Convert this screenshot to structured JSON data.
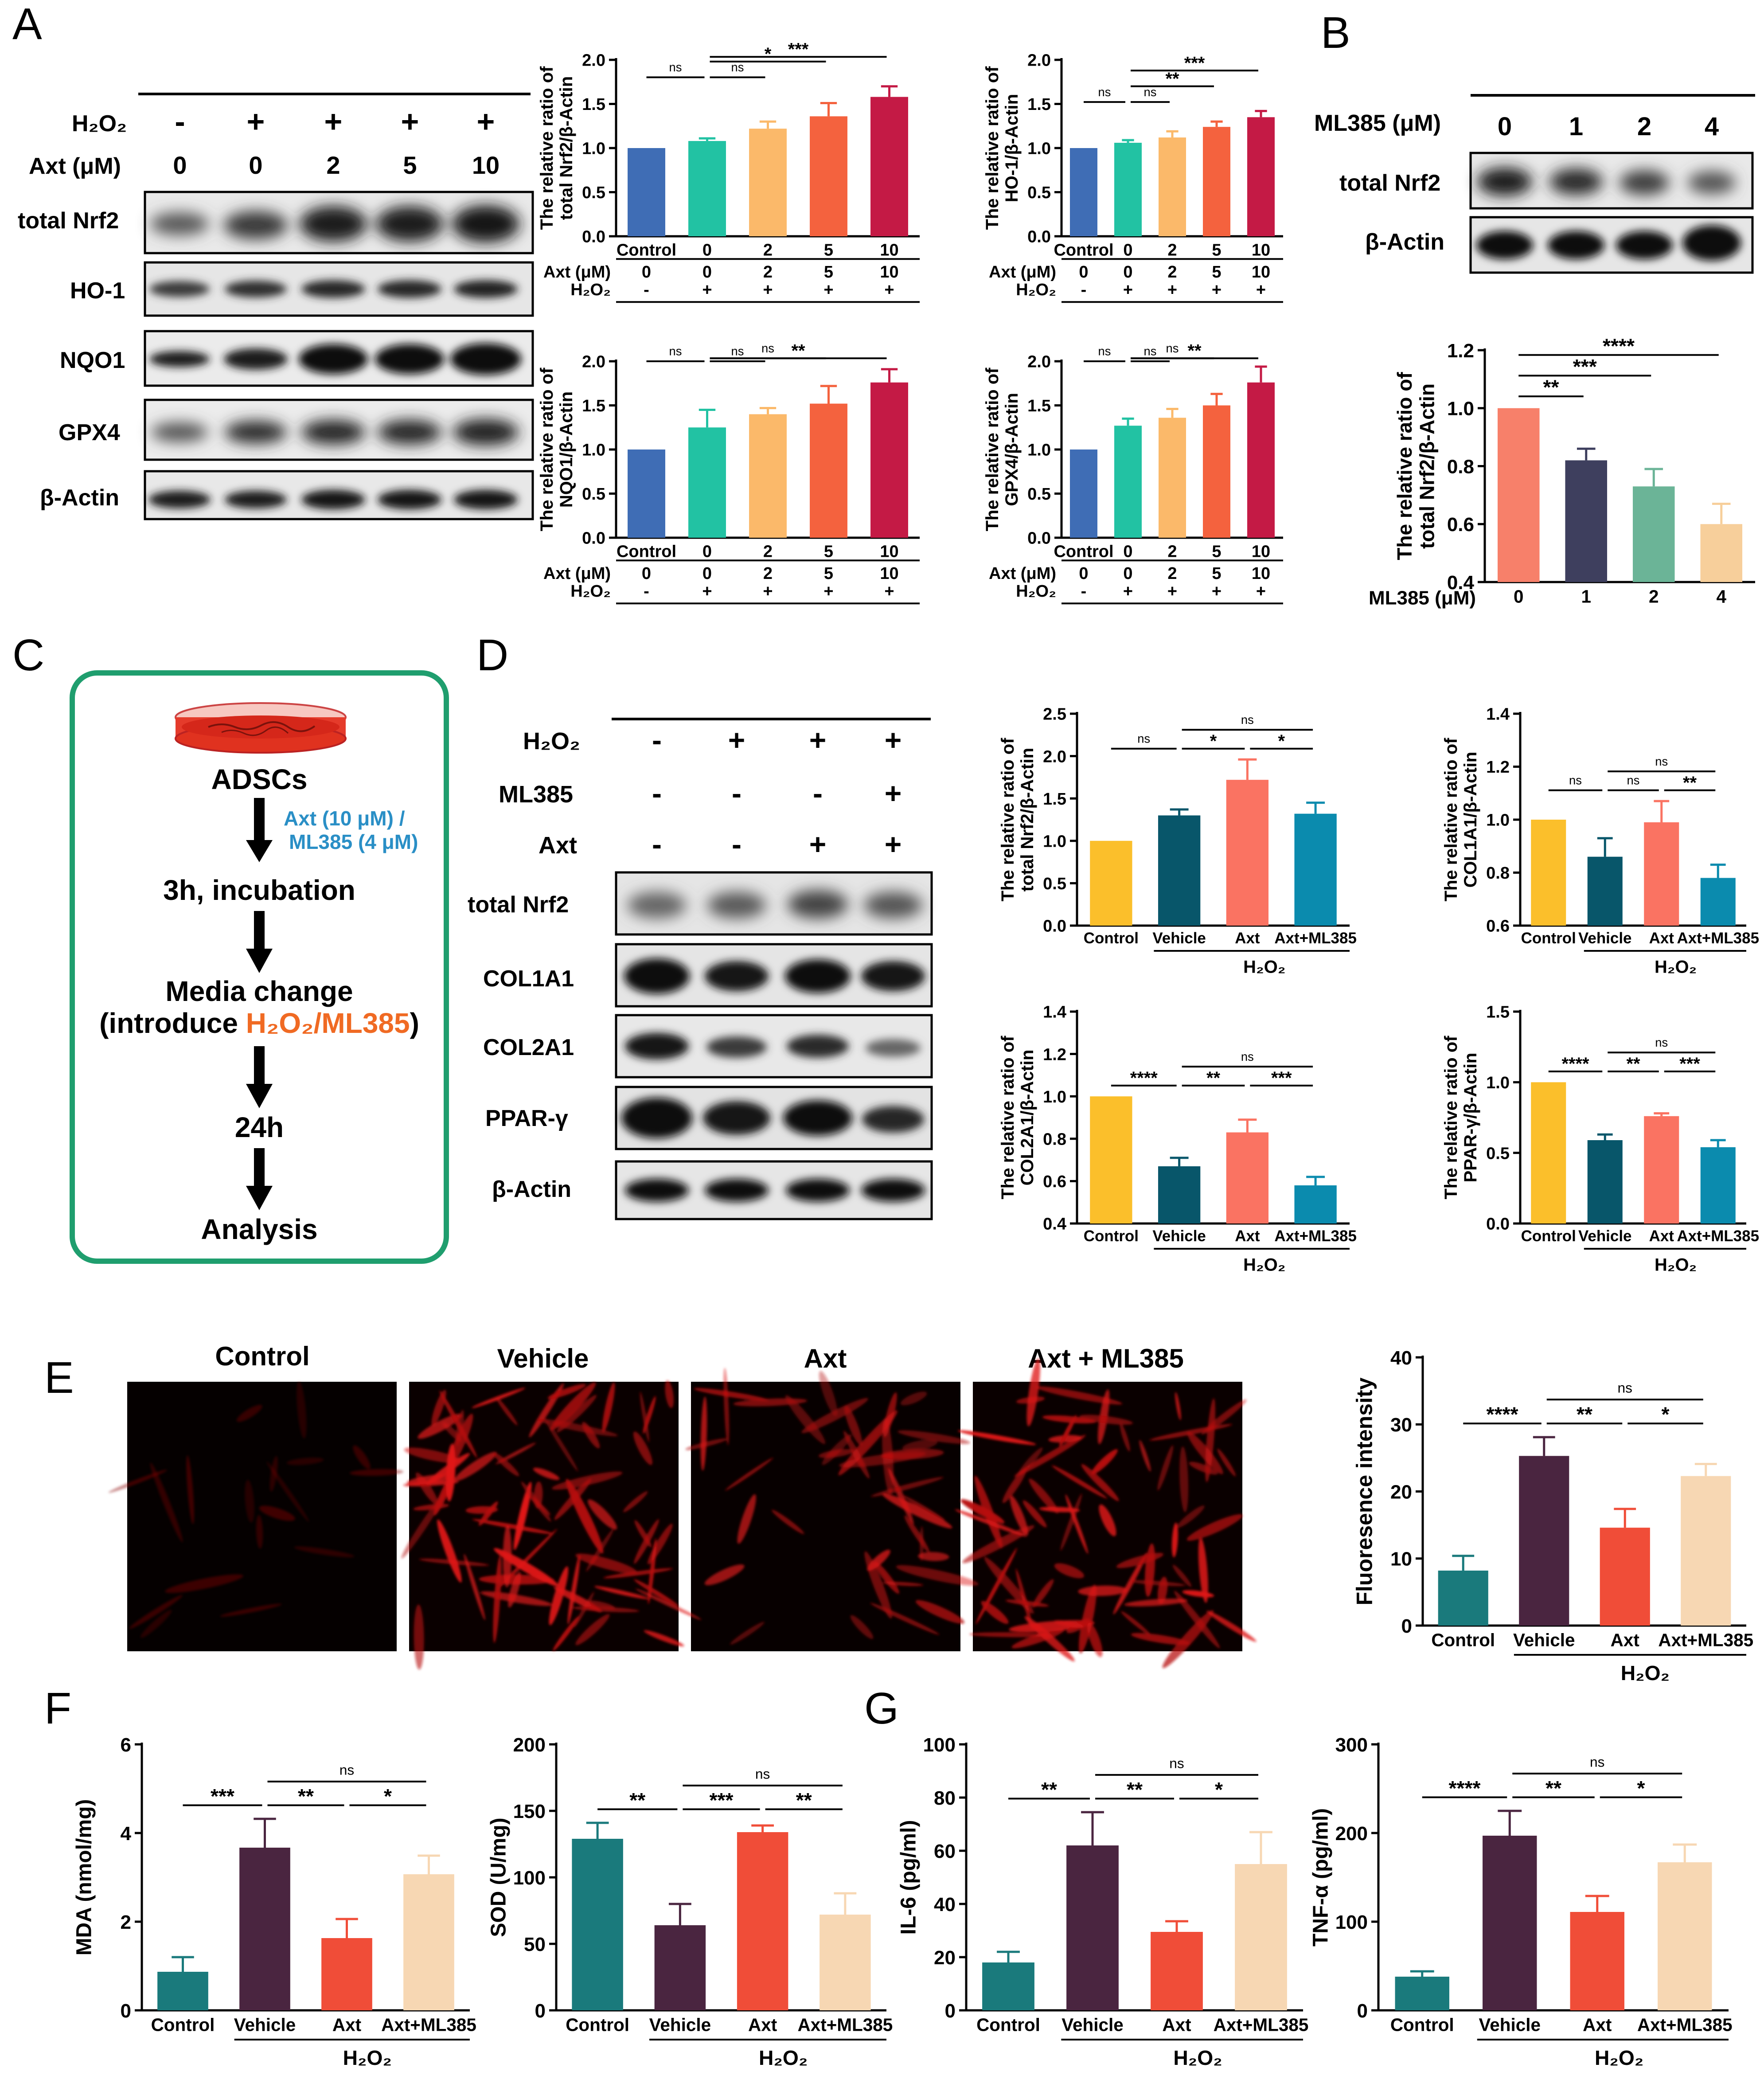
{
  "colors": {
    "control_blue": "#3f6db5",
    "cyan": "#22c2a3",
    "light_orange": "#fbb96a",
    "orange": "#f4623e",
    "crimson": "#c41a45",
    "salmon": "#f7806a",
    "navy": "#3e3f5e",
    "sage": "#6bb497",
    "beige": "#f7cf9b",
    "gold": "#fbbf2b",
    "teal_dark": "#08566a",
    "coral": "#fa7362",
    "teal_blue": "#0b8bae",
    "teal": "#1a7a7c",
    "plum": "#4a2540",
    "red": "#f04d38",
    "peach": "#f7d7b3",
    "flow_green": "#1f9e6e",
    "axt_blue": "#2a8fc6",
    "h2o2_orange": "#f06a23"
  },
  "panel_letters": {
    "A": "A",
    "B": "B",
    "C": "C",
    "D": "D",
    "E": "E",
    "F": "F",
    "G": "G"
  },
  "panelA": {
    "h2o2_label": "H₂O₂",
    "h2o2_signs": [
      "-",
      "+",
      "+",
      "+",
      "+"
    ],
    "axt_label": "Axt (μM)",
    "axt_doses": [
      "0",
      "0",
      "2",
      "5",
      "10"
    ],
    "blots": [
      "total Nrf2",
      "HO-1",
      "NQO1",
      "GPX4",
      "β-Actin"
    ]
  },
  "panelB": {
    "ml385_label": "ML385 (μM)",
    "doses": [
      "0",
      "1",
      "2",
      "4"
    ],
    "blots": [
      "total Nrf2",
      "β-Actin"
    ]
  },
  "panelC": {
    "cells": "ADSCs",
    "treatment": "Axt (10 μM) /",
    "treatment2": "ML385 (4 μM)",
    "step1": "3h, incubation",
    "step2a": "Media change",
    "step2b_pre": "(introduce ",
    "step2b_mid": "H₂O₂/ML385",
    "step2b_post": ")",
    "step3": "24h",
    "step4": "Analysis"
  },
  "panelD": {
    "rows": [
      {
        "label": "H₂O₂",
        "signs": [
          "-",
          "+",
          "+",
          "+"
        ]
      },
      {
        "label": "ML385",
        "signs": [
          "-",
          "-",
          "-",
          "+"
        ]
      },
      {
        "label": "Axt",
        "signs": [
          "-",
          "-",
          "+",
          "+"
        ]
      }
    ],
    "blots": [
      "total Nrf2",
      "COL1A1",
      "COL2A1",
      "PPAR-γ",
      "β-Actin"
    ]
  },
  "panelE": {
    "images": [
      "Control",
      "Vehicle",
      "Axt",
      "Axt + ML385"
    ]
  },
  "chart_data": [
    {
      "id": "A1",
      "type": "bar",
      "ylabel": "The relative ratio of total Nrf2/β-Actin",
      "ylim": [
        0,
        2.0
      ],
      "ticks": [
        "0.0",
        "0.5",
        "1.0",
        "1.5",
        "2.0"
      ],
      "categories": [
        "Control",
        "0",
        "2",
        "5",
        "10"
      ],
      "values": [
        1.0,
        1.08,
        1.22,
        1.36,
        1.58
      ],
      "errors": [
        0,
        0.03,
        0.08,
        0.15,
        0.12
      ],
      "sig": [
        {
          "from": 0,
          "to": 1,
          "label": "ns"
        },
        {
          "from": 1,
          "to": 2,
          "label": "ns"
        },
        {
          "from": 1,
          "to": 3,
          "label": "*"
        },
        {
          "from": 1,
          "to": 4,
          "label": "***"
        }
      ],
      "sub_rows": [
        {
          "label": "Axt (μM)",
          "vals": [
            "0",
            "0",
            "2",
            "5",
            "10"
          ]
        },
        {
          "label": "H₂O₂",
          "vals": [
            "-",
            "+",
            "+",
            "+",
            "+"
          ]
        }
      ]
    },
    {
      "id": "A2",
      "type": "bar",
      "ylabel": "The relative ratio of HO-1/β-Actin",
      "ylim": [
        0,
        2.0
      ],
      "ticks": [
        "0.0",
        "0.5",
        "1.0",
        "1.5",
        "2.0"
      ],
      "categories": [
        "Control",
        "0",
        "2",
        "5",
        "10"
      ],
      "values": [
        1.0,
        1.06,
        1.12,
        1.24,
        1.35
      ],
      "errors": [
        0,
        0.03,
        0.07,
        0.06,
        0.07
      ],
      "sig": [
        {
          "from": 0,
          "to": 1,
          "label": "ns"
        },
        {
          "from": 1,
          "to": 2,
          "label": "ns"
        },
        {
          "from": 1,
          "to": 3,
          "label": "**"
        },
        {
          "from": 1,
          "to": 4,
          "label": "***"
        }
      ],
      "sub_rows": [
        {
          "label": "Axt (μM)",
          "vals": [
            "0",
            "0",
            "2",
            "5",
            "10"
          ]
        },
        {
          "label": "H₂O₂",
          "vals": [
            "-",
            "+",
            "+",
            "+",
            "+"
          ]
        }
      ]
    },
    {
      "id": "A3",
      "type": "bar",
      "ylabel": "The relative ratio of NQO1/β-Actin",
      "ylim": [
        0,
        2.0
      ],
      "ticks": [
        "0.0",
        "0.5",
        "1.0",
        "1.5",
        "2.0"
      ],
      "categories": [
        "Control",
        "0",
        "2",
        "5",
        "10"
      ],
      "values": [
        1.0,
        1.25,
        1.4,
        1.52,
        1.76
      ],
      "errors": [
        0,
        0.2,
        0.07,
        0.2,
        0.15
      ],
      "sig": [
        {
          "from": 0,
          "to": 1,
          "label": "ns"
        },
        {
          "from": 1,
          "to": 2,
          "label": "ns"
        },
        {
          "from": 1,
          "to": 3,
          "label": "ns"
        },
        {
          "from": 1,
          "to": 4,
          "label": "**"
        }
      ],
      "sub_rows": [
        {
          "label": "Axt (μM)",
          "vals": [
            "0",
            "0",
            "2",
            "5",
            "10"
          ]
        },
        {
          "label": "H₂O₂",
          "vals": [
            "-",
            "+",
            "+",
            "+",
            "+"
          ]
        }
      ]
    },
    {
      "id": "A4",
      "type": "bar",
      "ylabel": "The relative ratio of GPX4/β-Actin",
      "ylim": [
        0,
        2.0
      ],
      "ticks": [
        "0.0",
        "0.5",
        "1.0",
        "1.5",
        "2.0"
      ],
      "categories": [
        "Control",
        "0",
        "2",
        "5",
        "10"
      ],
      "values": [
        1.0,
        1.27,
        1.36,
        1.5,
        1.76
      ],
      "errors": [
        0,
        0.08,
        0.1,
        0.13,
        0.18
      ],
      "sig": [
        {
          "from": 0,
          "to": 1,
          "label": "ns"
        },
        {
          "from": 1,
          "to": 2,
          "label": "ns"
        },
        {
          "from": 1,
          "to": 3,
          "label": "ns"
        },
        {
          "from": 1,
          "to": 4,
          "label": "**"
        }
      ],
      "sub_rows": [
        {
          "label": "Axt (μM)",
          "vals": [
            "0",
            "0",
            "2",
            "5",
            "10"
          ]
        },
        {
          "label": "H₂O₂",
          "vals": [
            "-",
            "+",
            "+",
            "+",
            "+"
          ]
        }
      ]
    },
    {
      "id": "B1",
      "type": "bar",
      "ylabel": "The relative ratio of total Nrf2/β-Actin",
      "ylim": [
        0.4,
        1.2
      ],
      "ticks": [
        "0.4",
        "0.6",
        "0.8",
        "1.0",
        "1.2"
      ],
      "categories": [
        "0",
        "1",
        "2",
        "4"
      ],
      "values": [
        1.0,
        0.82,
        0.73,
        0.6
      ],
      "errors": [
        0,
        0.04,
        0.06,
        0.07
      ],
      "xlabel": "ML385 (μM)",
      "sig": [
        {
          "from": 0,
          "to": 1,
          "label": "**"
        },
        {
          "from": 0,
          "to": 2,
          "label": "***"
        },
        {
          "from": 0,
          "to": 3,
          "label": "****"
        }
      ]
    },
    {
      "id": "D1",
      "type": "bar",
      "ylabel": "The relative ratio of total Nrf2/β-Actin",
      "ylim": [
        0,
        2.5
      ],
      "ticks": [
        "0.0",
        "0.5",
        "1.0",
        "1.5",
        "2.0",
        "2.5"
      ],
      "categories": [
        "Control",
        "Vehicle",
        "Axt",
        "Axt+ML385"
      ],
      "values": [
        1.0,
        1.3,
        1.72,
        1.32
      ],
      "errors": [
        0,
        0.07,
        0.24,
        0.13
      ],
      "group_label": "H₂O₂",
      "sig": [
        {
          "from": 0,
          "to": 1,
          "label": "ns"
        },
        {
          "from": 1,
          "to": 2,
          "label": "*"
        },
        {
          "from": 2,
          "to": 3,
          "label": "*"
        },
        {
          "from": 1,
          "to": 3,
          "label": "ns"
        }
      ]
    },
    {
      "id": "D2",
      "type": "bar",
      "ylabel": "The relative ratio of COL1A1/β-Actin",
      "ylim": [
        0.6,
        1.4
      ],
      "ticks": [
        "0.6",
        "0.8",
        "1.0",
        "1.2",
        "1.4"
      ],
      "categories": [
        "Control",
        "Vehicle",
        "Axt",
        "Axt+ML385"
      ],
      "values": [
        1.0,
        0.86,
        0.99,
        0.78
      ],
      "errors": [
        0,
        0.07,
        0.08,
        0.05
      ],
      "group_label": "H₂O₂",
      "sig": [
        {
          "from": 0,
          "to": 1,
          "label": "ns"
        },
        {
          "from": 1,
          "to": 2,
          "label": "ns"
        },
        {
          "from": 2,
          "to": 3,
          "label": "**"
        },
        {
          "from": 1,
          "to": 3,
          "label": "ns"
        }
      ]
    },
    {
      "id": "D3",
      "type": "bar",
      "ylabel": "The relative ratio of COL2A1/β-Actin",
      "ylim": [
        0.4,
        1.4
      ],
      "ticks": [
        "0.4",
        "0.6",
        "0.8",
        "1.0",
        "1.2",
        "1.4"
      ],
      "categories": [
        "Control",
        "Vehicle",
        "Axt",
        "Axt+ML385"
      ],
      "values": [
        1.0,
        0.67,
        0.83,
        0.58
      ],
      "errors": [
        0,
        0.04,
        0.06,
        0.04
      ],
      "group_label": "H₂O₂",
      "sig": [
        {
          "from": 0,
          "to": 1,
          "label": "****"
        },
        {
          "from": 1,
          "to": 2,
          "label": "**"
        },
        {
          "from": 2,
          "to": 3,
          "label": "***"
        },
        {
          "from": 1,
          "to": 3,
          "label": "ns"
        }
      ]
    },
    {
      "id": "D4",
      "type": "bar",
      "ylabel": "The relative ratio of PPAR-γ/β-Actin",
      "ylim": [
        0,
        1.5
      ],
      "ticks": [
        "0.0",
        "0.5",
        "1.0",
        "1.5"
      ],
      "categories": [
        "Control",
        "Vehicle",
        "Axt",
        "Axt+ML385"
      ],
      "values": [
        1.0,
        0.59,
        0.76,
        0.54
      ],
      "errors": [
        0,
        0.04,
        0.02,
        0.05
      ],
      "group_label": "H₂O₂",
      "sig": [
        {
          "from": 0,
          "to": 1,
          "label": "****"
        },
        {
          "from": 1,
          "to": 2,
          "label": "**"
        },
        {
          "from": 2,
          "to": 3,
          "label": "***"
        },
        {
          "from": 1,
          "to": 3,
          "label": "ns"
        }
      ]
    },
    {
      "id": "E1",
      "type": "bar",
      "ylabel": "Fluoresence intensity",
      "ylim": [
        0,
        40
      ],
      "ticks": [
        "0",
        "10",
        "20",
        "30",
        "40"
      ],
      "categories": [
        "Control",
        "Vehicle",
        "Axt",
        "Axt+ML385"
      ],
      "values": [
        8.2,
        25.3,
        14.6,
        22.3
      ],
      "errors": [
        2.2,
        2.8,
        2.8,
        1.8
      ],
      "group_label": "H₂O₂",
      "sig": [
        {
          "from": 0,
          "to": 1,
          "label": "****"
        },
        {
          "from": 1,
          "to": 2,
          "label": "**"
        },
        {
          "from": 2,
          "to": 3,
          "label": "*"
        },
        {
          "from": 1,
          "to": 3,
          "label": "ns"
        }
      ]
    },
    {
      "id": "F1",
      "type": "bar",
      "ylabel": "MDA (nmol/mg)",
      "ylim": [
        0,
        6
      ],
      "ticks": [
        "0",
        "2",
        "4",
        "6"
      ],
      "categories": [
        "Control",
        "Vehicle",
        "Axt",
        "Axt+ML385"
      ],
      "values": [
        0.87,
        3.67,
        1.63,
        3.07
      ],
      "errors": [
        0.33,
        0.65,
        0.43,
        0.42
      ],
      "group_label": "H₂O₂",
      "sig": [
        {
          "from": 0,
          "to": 1,
          "label": "***"
        },
        {
          "from": 1,
          "to": 2,
          "label": "**"
        },
        {
          "from": 2,
          "to": 3,
          "label": "*"
        },
        {
          "from": 1,
          "to": 3,
          "label": "ns"
        }
      ]
    },
    {
      "id": "F2",
      "type": "bar",
      "ylabel": "SOD (U/mg)",
      "ylim": [
        0,
        200
      ],
      "ticks": [
        "0",
        "50",
        "100",
        "150",
        "200"
      ],
      "categories": [
        "Control",
        "Vehicle",
        "Axt",
        "Axt+ML385"
      ],
      "values": [
        129,
        64,
        134,
        72
      ],
      "errors": [
        12,
        16,
        5,
        16
      ],
      "group_label": "H₂O₂",
      "sig": [
        {
          "from": 0,
          "to": 1,
          "label": "**"
        },
        {
          "from": 1,
          "to": 2,
          "label": "***"
        },
        {
          "from": 2,
          "to": 3,
          "label": "**"
        },
        {
          "from": 1,
          "to": 3,
          "label": "ns"
        }
      ]
    },
    {
      "id": "G1",
      "type": "bar",
      "ylabel": "IL-6 (pg/ml)",
      "ylim": [
        0,
        100
      ],
      "ticks": [
        "0",
        "20",
        "40",
        "60",
        "80",
        "100"
      ],
      "categories": [
        "Control",
        "Vehicle",
        "Axt",
        "Axt+ML385"
      ],
      "values": [
        18,
        62,
        29.5,
        55
      ],
      "errors": [
        4,
        12.5,
        4,
        12
      ],
      "group_label": "H₂O₂",
      "sig": [
        {
          "from": 0,
          "to": 1,
          "label": "**"
        },
        {
          "from": 1,
          "to": 2,
          "label": "**"
        },
        {
          "from": 2,
          "to": 3,
          "label": "*"
        },
        {
          "from": 1,
          "to": 3,
          "label": "ns"
        }
      ]
    },
    {
      "id": "G2",
      "type": "bar",
      "ylabel": "TNF-α (pg/ml)",
      "ylim": [
        0,
        300
      ],
      "ticks": [
        "0",
        "100",
        "200",
        "300"
      ],
      "categories": [
        "Control",
        "Vehicle",
        "Axt",
        "Axt+ML385"
      ],
      "values": [
        38,
        197,
        111,
        167
      ],
      "errors": [
        6,
        28,
        18,
        20
      ],
      "group_label": "H₂O₂",
      "sig": [
        {
          "from": 0,
          "to": 1,
          "label": "****"
        },
        {
          "from": 1,
          "to": 2,
          "label": "**"
        },
        {
          "from": 2,
          "to": 3,
          "label": "*"
        },
        {
          "from": 1,
          "to": 3,
          "label": "ns"
        }
      ]
    }
  ]
}
